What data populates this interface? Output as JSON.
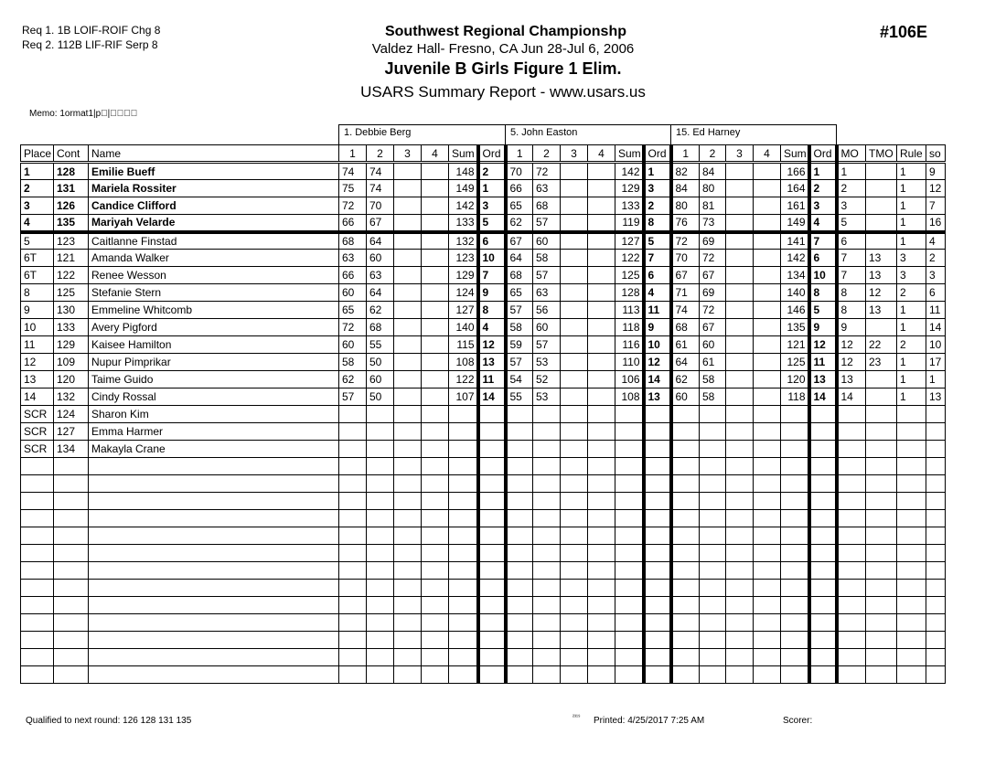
{
  "header": {
    "requirements": [
      "Req  1.  1B LOIF-ROIF Chg 8",
      "Req  2.  112B LIF-RIF Serp 8"
    ],
    "title": "Southwest Regional Championshp",
    "venue": "Valdez Hall- Fresno, CA  Jun 28-Jul 6, 2006",
    "event": "Juvenile B Girls Figure 1 Elim.",
    "report": "USARS Summary Report - www.usars.us",
    "event_number": "#106E",
    "memo": "Memo: 1ormat1|p\u0000|\u0000\u0000\u0000\u0000"
  },
  "judges": [
    "1.  Debbie  Berg",
    "5.  John Easton",
    "15.  Ed Harney"
  ],
  "columns": [
    "Place",
    "Cont",
    "Name",
    "1",
    "2",
    "3",
    "4",
    "Sum",
    "Ord",
    "1",
    "2",
    "3",
    "4",
    "Sum",
    "Ord",
    "1",
    "2",
    "3",
    "4",
    "Sum",
    "Ord",
    "MO",
    "TMO",
    "Rule",
    "so"
  ],
  "rows": [
    [
      "1",
      "128",
      "Emilie Bueff",
      "74",
      "74",
      "",
      "",
      "148",
      "2",
      "70",
      "72",
      "",
      "",
      "142",
      "1",
      "82",
      "84",
      "",
      "",
      "166",
      "1",
      "1",
      "",
      "1",
      "9"
    ],
    [
      "2",
      "131",
      "Mariela Rossiter",
      "75",
      "74",
      "",
      "",
      "149",
      "1",
      "66",
      "63",
      "",
      "",
      "129",
      "3",
      "84",
      "80",
      "",
      "",
      "164",
      "2",
      "2",
      "",
      "1",
      "12"
    ],
    [
      "3",
      "126",
      "Candice Clifford",
      "72",
      "70",
      "",
      "",
      "142",
      "3",
      "65",
      "68",
      "",
      "",
      "133",
      "2",
      "80",
      "81",
      "",
      "",
      "161",
      "3",
      "3",
      "",
      "1",
      "7"
    ],
    [
      "4",
      "135",
      "Mariyah Velarde",
      "66",
      "67",
      "",
      "",
      "133",
      "5",
      "62",
      "57",
      "",
      "",
      "119",
      "8",
      "76",
      "73",
      "",
      "",
      "149",
      "4",
      "5",
      "",
      "1",
      "16"
    ],
    [
      "5",
      "123",
      "Caitlanne Finstad",
      "68",
      "64",
      "",
      "",
      "132",
      "6",
      "67",
      "60",
      "",
      "",
      "127",
      "5",
      "72",
      "69",
      "",
      "",
      "141",
      "7",
      "6",
      "",
      "1",
      "4"
    ],
    [
      "6T",
      "121",
      "Amanda Walker",
      "63",
      "60",
      "",
      "",
      "123",
      "10",
      "64",
      "58",
      "",
      "",
      "122",
      "7",
      "70",
      "72",
      "",
      "",
      "142",
      "6",
      "7",
      "13",
      "3",
      "2"
    ],
    [
      "6T",
      "122",
      "Renee Wesson",
      "66",
      "63",
      "",
      "",
      "129",
      "7",
      "68",
      "57",
      "",
      "",
      "125",
      "6",
      "67",
      "67",
      "",
      "",
      "134",
      "10",
      "7",
      "13",
      "3",
      "3"
    ],
    [
      "8",
      "125",
      "Stefanie Stern",
      "60",
      "64",
      "",
      "",
      "124",
      "9",
      "65",
      "63",
      "",
      "",
      "128",
      "4",
      "71",
      "69",
      "",
      "",
      "140",
      "8",
      "8",
      "12",
      "2",
      "6"
    ],
    [
      "9",
      "130",
      "Emmeline Whitcomb",
      "65",
      "62",
      "",
      "",
      "127",
      "8",
      "57",
      "56",
      "",
      "",
      "113",
      "11",
      "74",
      "72",
      "",
      "",
      "146",
      "5",
      "8",
      "13",
      "1",
      "11"
    ],
    [
      "10",
      "133",
      "Avery Pigford",
      "72",
      "68",
      "",
      "",
      "140",
      "4",
      "58",
      "60",
      "",
      "",
      "118",
      "9",
      "68",
      "67",
      "",
      "",
      "135",
      "9",
      "9",
      "",
      "1",
      "14"
    ],
    [
      "11",
      "129",
      "Kaisee Hamilton",
      "60",
      "55",
      "",
      "",
      "115",
      "12",
      "59",
      "57",
      "",
      "",
      "116",
      "10",
      "61",
      "60",
      "",
      "",
      "121",
      "12",
      "12",
      "22",
      "2",
      "10"
    ],
    [
      "12",
      "109",
      "Nupur Pimprikar",
      "58",
      "50",
      "",
      "",
      "108",
      "13",
      "57",
      "53",
      "",
      "",
      "110",
      "12",
      "64",
      "61",
      "",
      "",
      "125",
      "11",
      "12",
      "23",
      "1",
      "17"
    ],
    [
      "13",
      "120",
      "Taime Guido",
      "62",
      "60",
      "",
      "",
      "122",
      "11",
      "54",
      "52",
      "",
      "",
      "106",
      "14",
      "62",
      "58",
      "",
      "",
      "120",
      "13",
      "13",
      "",
      "1",
      "1"
    ],
    [
      "14",
      "132",
      "Cindy Rossal",
      "57",
      "50",
      "",
      "",
      "107",
      "14",
      "55",
      "53",
      "",
      "",
      "108",
      "13",
      "60",
      "58",
      "",
      "",
      "118",
      "14",
      "14",
      "",
      "1",
      "13"
    ],
    [
      "SCR",
      "124",
      "Sharon Kim",
      "",
      "",
      "",
      "",
      "",
      "",
      "",
      "",
      "",
      "",
      "",
      "",
      "",
      "",
      "",
      "",
      "",
      "",
      "",
      "",
      "",
      ""
    ],
    [
      "SCR",
      "127",
      "Emma Harmer",
      "",
      "",
      "",
      "",
      "",
      "",
      "",
      "",
      "",
      "",
      "",
      "",
      "",
      "",
      "",
      "",
      "",
      "",
      "",
      "",
      "",
      ""
    ],
    [
      "SCR",
      "134",
      "Makayla Crane",
      "",
      "",
      "",
      "",
      "",
      "",
      "",
      "",
      "",
      "",
      "",
      "",
      "",
      "",
      "",
      "",
      "",
      "",
      "",
      "",
      "",
      ""
    ]
  ],
  "qualified_count": 4,
  "footer": {
    "qualified": "Qualified to next round:   126 128 131 135",
    "mark": "²³¹⁹",
    "printed": "Printed:  4/25/2017  7:25 AM",
    "scorer": "Scorer:"
  }
}
